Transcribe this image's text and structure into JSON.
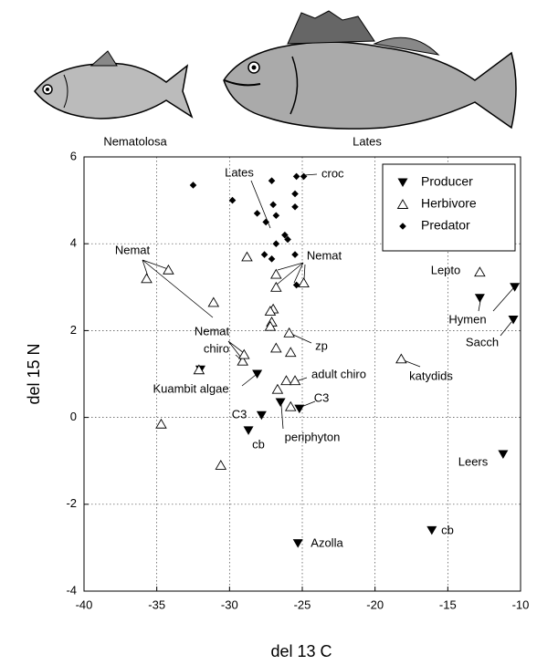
{
  "chart_data": {
    "type": "scatter",
    "image_labels": [
      "Nematolosa",
      "Lates"
    ],
    "xlabel": "del 13 C",
    "ylabel": "del 15 N",
    "xlim": [
      -40,
      -10
    ],
    "ylim": [
      -4,
      6
    ],
    "xticks": [
      -40,
      -35,
      -30,
      -25,
      -20,
      -15,
      -10
    ],
    "yticks": [
      -4,
      -2,
      0,
      2,
      4,
      6
    ],
    "grid": true,
    "legend": "upper right",
    "series": [
      {
        "name": "Producer",
        "color": "#000000",
        "marker": "v",
        "x": [
          -32.0,
          -28.1,
          -27.8,
          -28.7,
          -26.5,
          -25.2,
          -25.3,
          -16.1,
          -11.2,
          -12.8,
          -10.4,
          -10.5
        ],
        "y": [
          1.1,
          1.0,
          0.05,
          -0.3,
          0.35,
          0.2,
          -2.9,
          -2.6,
          -0.85,
          2.75,
          3.0,
          2.25
        ]
      },
      {
        "name": "Herbivore",
        "color": "#000000",
        "marker": "^",
        "x": [
          -35.7,
          -34.2,
          -31.1,
          -32.1,
          -34.7,
          -30.6,
          -29.1,
          -29.0,
          -28.8,
          -26.8,
          -26.8,
          -24.9,
          -27.0,
          -27.2,
          -27.1,
          -27.2,
          -25.9,
          -26.8,
          -25.8,
          -26.1,
          -25.5,
          -26.7,
          -25.8,
          -18.2,
          -12.8
        ],
        "y": [
          3.2,
          3.4,
          2.65,
          1.1,
          -0.15,
          -1.1,
          1.3,
          1.45,
          3.7,
          3.3,
          3.0,
          3.1,
          2.5,
          2.45,
          2.2,
          2.1,
          1.95,
          1.6,
          1.5,
          0.85,
          0.85,
          0.65,
          0.25,
          1.35,
          3.35
        ]
      },
      {
        "name": "Predator",
        "color": "#000000",
        "marker": "D",
        "x": [
          -32.5,
          -29.8,
          -27.1,
          -25.4,
          -24.9,
          -28.1,
          -27.0,
          -25.5,
          -25.5,
          -27.5,
          -26.8,
          -26.8,
          -26.2,
          -26.0,
          -27.6,
          -27.1,
          -25.5,
          -25.4
        ],
        "y": [
          5.35,
          5.0,
          5.45,
          5.55,
          5.55,
          4.7,
          4.9,
          5.15,
          4.85,
          4.5,
          4.65,
          4.0,
          4.2,
          4.1,
          3.75,
          3.65,
          3.75,
          3.05
        ]
      }
    ],
    "annotations": [
      "Lates",
      "croc",
      "Nemat",
      "Nemat",
      "Nemat",
      "Lepto",
      "Hymen",
      "Sacch",
      "katydids",
      "chiro",
      "zp",
      "adult chiro",
      "Kuambit algae",
      "C3",
      "C3",
      "cb",
      "periphyton",
      "cb",
      "Leers",
      "Azolla"
    ]
  }
}
